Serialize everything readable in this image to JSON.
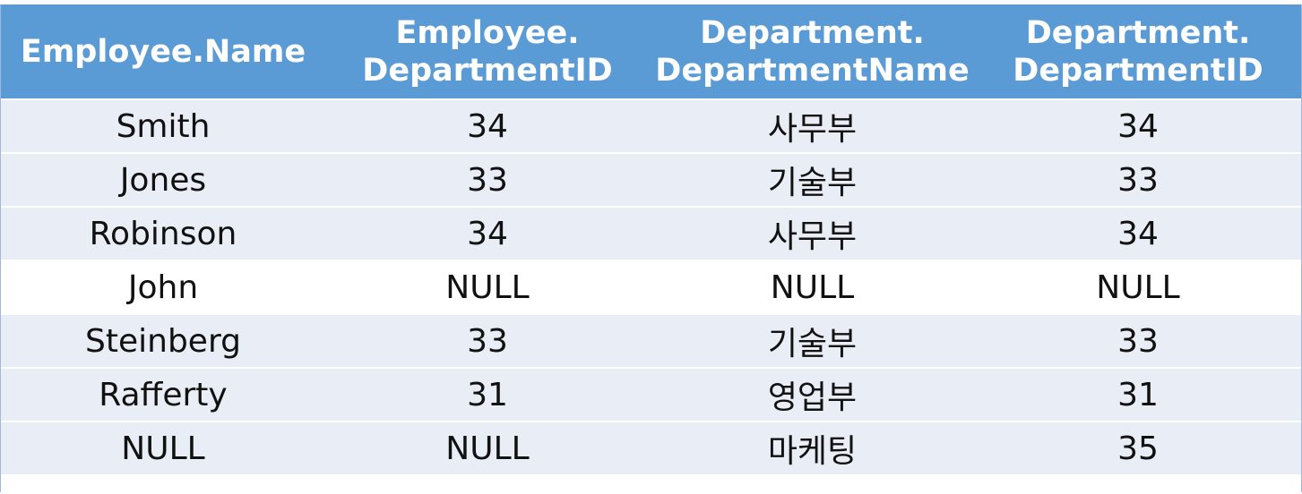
{
  "table": {
    "headers": [
      [
        "Employee.Name"
      ],
      [
        "Employee.",
        "DepartmentID"
      ],
      [
        "Department.",
        "DepartmentName"
      ],
      [
        "Department.",
        "DepartmentID"
      ]
    ],
    "rows": [
      [
        "Smith",
        "34",
        "사무부",
        "34"
      ],
      [
        "Jones",
        "33",
        "기술부",
        "33"
      ],
      [
        "Robinson",
        "34",
        "사무부",
        "34"
      ],
      [
        "John",
        "NULL",
        "NULL",
        "NULL"
      ],
      [
        "Steinberg",
        "33",
        "기술부",
        "33"
      ],
      [
        "Rafferty",
        "31",
        "영업부",
        "31"
      ],
      [
        "NULL",
        "NULL",
        "마케팅",
        "35"
      ]
    ]
  }
}
